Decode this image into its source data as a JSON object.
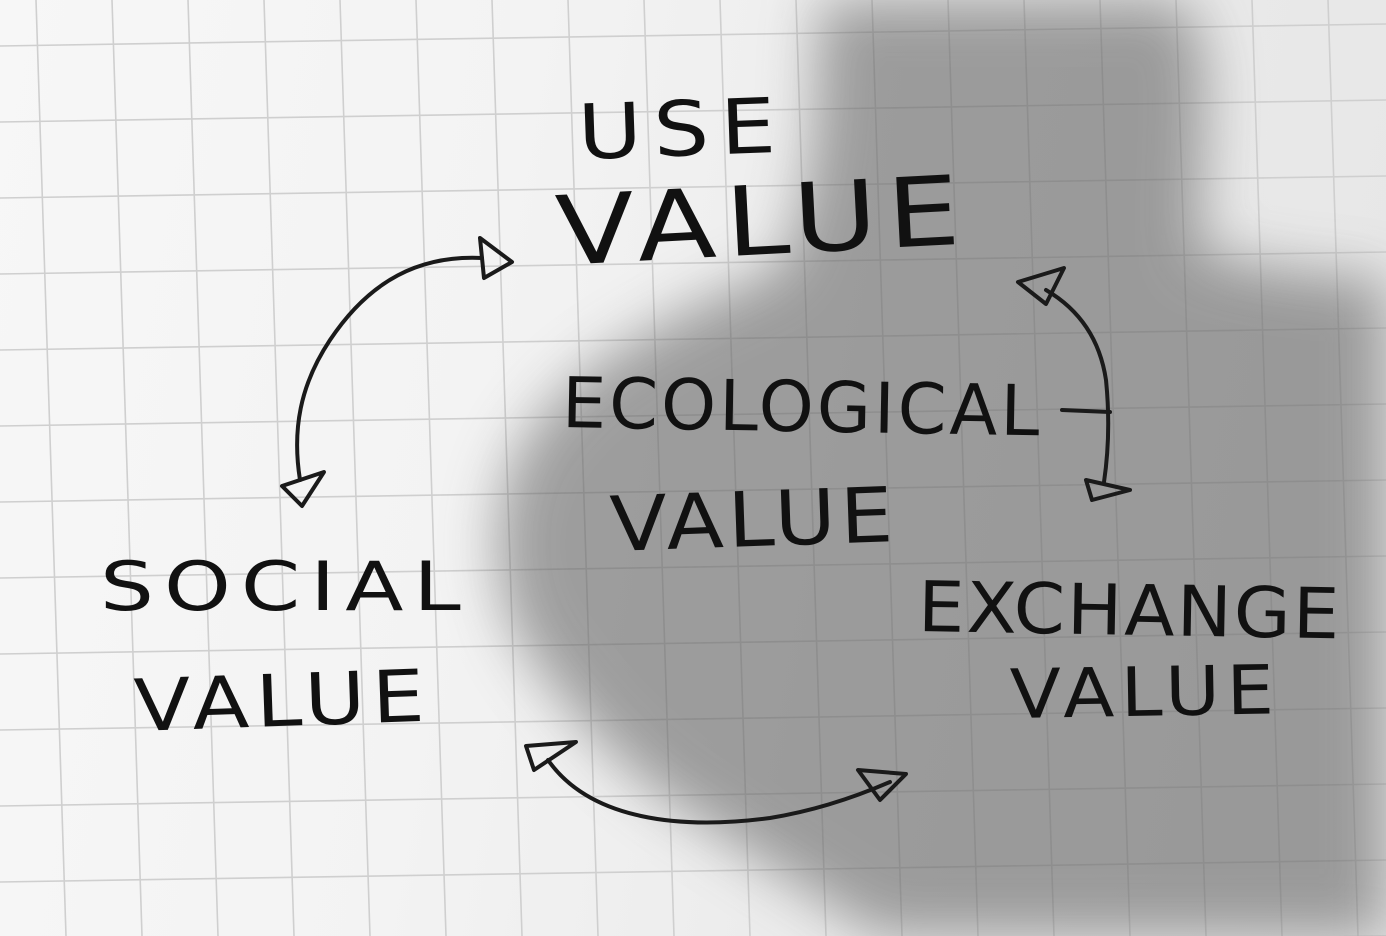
{
  "nodes": {
    "use_value": {
      "line1": "USE",
      "line2": "VALUE"
    },
    "ecological_value": {
      "line1": "ECOLOGICAL",
      "line2": "VALUE"
    },
    "social_value": {
      "line1": "SOCIAL",
      "line2": "VALUE"
    },
    "exchange_value": {
      "line1": "EXCHANGE",
      "line2": "VALUE"
    }
  },
  "connections": [
    {
      "from": "use_value",
      "to": "social_value",
      "style": "double-headed-arrow"
    },
    {
      "from": "use_value",
      "to": "exchange_value",
      "style": "double-headed-arrow"
    },
    {
      "from": "social_value",
      "to": "exchange_value",
      "style": "double-headed-arrow"
    }
  ],
  "colors": {
    "paper": "#f4f4f4",
    "grid": "#cfcfcf",
    "ink": "#111111",
    "shadow": "#8a8a8a"
  }
}
